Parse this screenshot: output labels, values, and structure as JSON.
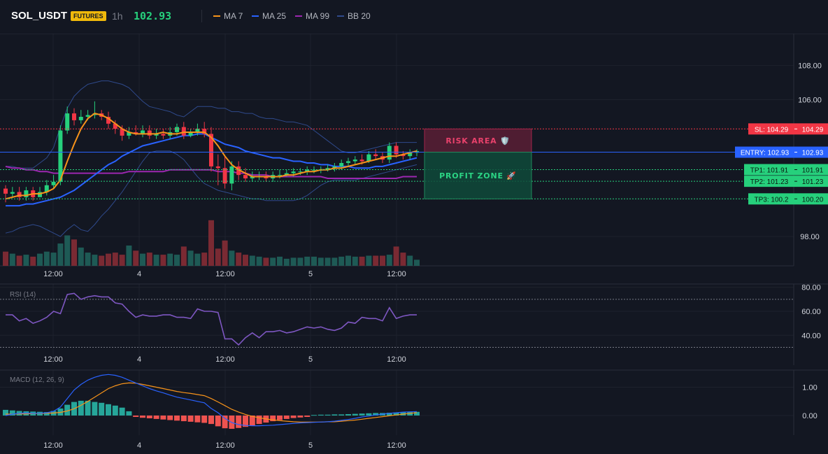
{
  "header": {
    "symbol": "SOL_USDT",
    "badge": "FUTURES",
    "interval": "1h",
    "price": "102.93",
    "indicators": [
      {
        "label": "MA 7",
        "color": "#f7931a",
        "icon": "line-swatch"
      },
      {
        "label": "MA 25",
        "color": "#2962ff",
        "icon": "line-swatch"
      },
      {
        "label": "MA 99",
        "color": "#9c27b0",
        "icon": "line-swatch"
      },
      {
        "label": "BB 20",
        "color": "#2f4a8c",
        "icon": "line-swatch"
      }
    ]
  },
  "colors": {
    "up": "#26d07c",
    "down": "#f23645",
    "vol_up": "#1e5a55",
    "vol_down": "#7a2a33",
    "ma7": "#f7931a",
    "ma25": "#2962ff",
    "ma99": "#9c27b0",
    "bb": "#2f4a8c",
    "rsi": "#7e57c2",
    "macd": "#2962ff",
    "signal": "#f7931a",
    "hist_up": "#26a69a",
    "hist_down": "#ef5350",
    "sl": "#f23645",
    "entry": "#2962ff",
    "tp": "#26d07c"
  },
  "time_axis": [
    "12:00",
    "4",
    "12:00",
    "5",
    "12:00"
  ],
  "levels": {
    "sl": {
      "label": "SL: 104.29",
      "value": "104.29",
      "price": 104.29
    },
    "entry": {
      "label": "ENTRY: 102.93",
      "value": "102.93",
      "price": 102.93
    },
    "tps": [
      {
        "label": "TP1: 101.91",
        "value": "101.91",
        "price": 101.91
      },
      {
        "label": "TP2: 101.23",
        "value": "101.23",
        "price": 101.23
      },
      {
        "label": "TP3: 100.2",
        "value": "100.20",
        "price": 100.2
      }
    ]
  },
  "zones": {
    "risk": {
      "label": "RISK AREA 🛡️",
      "icon": "shield-icon"
    },
    "profit": {
      "label": "PROFIT ZONE 🚀",
      "icon": "rocket-icon"
    }
  },
  "chart_data": [
    {
      "type": "candlestick",
      "title": "SOL_USDT 1h",
      "price_axis_ticks": [
        "108.00",
        "106.00",
        "98.00"
      ],
      "price_axis_values": [
        108,
        106,
        98
      ],
      "x": [
        1,
        2,
        3,
        4,
        5,
        6,
        7,
        8,
        9,
        10,
        11,
        12,
        13,
        14,
        15,
        16,
        17,
        18,
        19,
        20,
        21,
        22,
        23,
        24,
        25,
        26,
        27,
        28,
        29,
        30,
        31,
        32,
        33,
        34,
        35,
        36,
        37,
        38,
        39,
        40,
        41,
        42,
        43,
        44,
        45,
        46,
        47,
        48,
        49,
        50,
        51,
        52,
        53,
        54,
        55,
        56,
        57,
        58,
        59,
        60,
        61
      ],
      "open": [
        100.8,
        100.5,
        100.6,
        100.3,
        100.7,
        100.3,
        100.6,
        101.0,
        101.2,
        104.2,
        105.2,
        104.8,
        105.0,
        105.1,
        105.2,
        105.0,
        104.6,
        104.3,
        103.9,
        104.1,
        104.0,
        104.2,
        103.9,
        104.0,
        103.9,
        104.1,
        104.4,
        103.9,
        104.1,
        104.3,
        104.0,
        102.1,
        102.0,
        101.1,
        102.1,
        101.6,
        101.4,
        101.5,
        101.5,
        101.4,
        101.6,
        101.6,
        101.7,
        101.8,
        101.8,
        101.9,
        101.9,
        101.9,
        102.0,
        102.1,
        102.3,
        102.4,
        102.5,
        102.4,
        102.8,
        102.7,
        102.5,
        103.3,
        102.8,
        102.7,
        102.9
      ],
      "close": [
        100.5,
        100.6,
        100.3,
        100.7,
        100.3,
        100.6,
        101.0,
        101.2,
        104.2,
        105.2,
        104.8,
        105.0,
        105.1,
        105.2,
        105.0,
        104.6,
        104.3,
        103.9,
        104.1,
        104.0,
        104.2,
        103.9,
        104.0,
        103.9,
        104.1,
        104.4,
        103.9,
        104.1,
        104.3,
        104.0,
        102.1,
        102.0,
        101.1,
        102.1,
        101.6,
        101.4,
        101.5,
        101.5,
        101.4,
        101.6,
        101.6,
        101.7,
        101.8,
        101.8,
        101.9,
        101.9,
        101.9,
        102.0,
        102.1,
        102.3,
        102.4,
        102.5,
        102.4,
        102.8,
        102.7,
        102.5,
        103.3,
        102.8,
        102.7,
        102.9,
        103.0
      ],
      "high": [
        101.0,
        100.9,
        100.9,
        100.9,
        100.9,
        100.9,
        101.3,
        101.6,
        104.5,
        105.6,
        105.5,
        105.4,
        105.4,
        105.9,
        105.4,
        105.3,
        104.8,
        104.5,
        104.4,
        104.5,
        104.5,
        104.5,
        104.3,
        104.3,
        104.4,
        104.6,
        104.7,
        104.3,
        104.6,
        104.7,
        104.4,
        102.8,
        102.7,
        102.4,
        102.4,
        102.0,
        101.8,
        101.8,
        101.8,
        101.8,
        101.9,
        101.9,
        102.0,
        102.0,
        102.1,
        102.1,
        102.1,
        102.2,
        102.3,
        102.5,
        102.6,
        102.7,
        102.8,
        103.0,
        103.1,
        102.9,
        103.5,
        103.5,
        103.0,
        103.1,
        103.1
      ],
      "low": [
        100.0,
        100.3,
        100.1,
        100.1,
        100.1,
        100.3,
        100.4,
        100.8,
        101.0,
        104.0,
        104.5,
        104.6,
        104.8,
        104.9,
        104.8,
        104.3,
        104.0,
        103.6,
        103.7,
        103.9,
        103.8,
        103.7,
        103.7,
        103.7,
        103.7,
        103.9,
        103.7,
        103.8,
        103.9,
        103.8,
        101.8,
        101.0,
        100.8,
        100.7,
        101.3,
        101.2,
        101.2,
        101.3,
        101.2,
        101.2,
        101.4,
        101.5,
        101.5,
        101.6,
        101.6,
        101.7,
        101.7,
        101.8,
        101.8,
        101.9,
        102.1,
        102.2,
        102.2,
        102.3,
        102.5,
        102.3,
        102.3,
        102.6,
        102.5,
        102.5,
        102.7
      ],
      "volume": [
        14,
        12,
        10,
        11,
        9,
        12,
        14,
        13,
        22,
        30,
        26,
        18,
        13,
        11,
        10,
        12,
        13,
        11,
        20,
        15,
        12,
        13,
        11,
        11,
        12,
        11,
        19,
        15,
        12,
        13,
        45,
        17,
        25,
        15,
        13,
        11,
        10,
        9,
        8,
        8,
        9,
        7,
        8,
        8,
        9,
        9,
        8,
        8,
        8,
        9,
        10,
        9,
        9,
        10,
        10,
        10,
        11,
        19,
        13,
        10,
        6
      ],
      "ma7": [
        100.2,
        100.3,
        100.4,
        100.4,
        100.5,
        100.5,
        100.6,
        100.8,
        101.3,
        102.4,
        103.4,
        104.3,
        104.9,
        105.2,
        105.1,
        104.9,
        104.6,
        104.3,
        104.1,
        104.0,
        104.0,
        104.0,
        104.0,
        104.1,
        104.0,
        104.0,
        104.1,
        104.1,
        104.1,
        104.1,
        103.8,
        103.3,
        102.7,
        102.2,
        101.9,
        101.7,
        101.5,
        101.5,
        101.5,
        101.5,
        101.5,
        101.6,
        101.6,
        101.7,
        101.8,
        101.8,
        101.9,
        101.9,
        102.0,
        102.0,
        102.1,
        102.2,
        102.3,
        102.4,
        102.5,
        102.6,
        102.7,
        102.7,
        102.8,
        102.9,
        103.0
      ],
      "ma25": [
        99.8,
        99.8,
        99.8,
        99.9,
        99.9,
        100.0,
        100.1,
        100.2,
        100.3,
        100.5,
        100.7,
        101.0,
        101.3,
        101.6,
        101.9,
        102.2,
        102.4,
        102.7,
        102.9,
        103.1,
        103.3,
        103.4,
        103.5,
        103.6,
        103.7,
        103.8,
        103.9,
        103.9,
        104.0,
        104.0,
        103.8,
        103.6,
        103.4,
        103.3,
        103.2,
        103.0,
        102.9,
        102.8,
        102.7,
        102.6,
        102.6,
        102.5,
        102.4,
        102.4,
        102.3,
        102.3,
        102.2,
        102.2,
        102.1,
        102.1,
        102.1,
        102.0,
        102.0,
        102.0,
        102.1,
        102.1,
        102.2,
        102.3,
        102.4,
        102.5,
        102.6
      ],
      "ma99": [
        102.1,
        102.0,
        102.0,
        101.9,
        101.9,
        101.8,
        101.8,
        101.7,
        101.7,
        101.7,
        101.7,
        101.7,
        101.7,
        101.7,
        101.7,
        101.7,
        101.7,
        101.7,
        101.8,
        101.8,
        101.8,
        101.8,
        101.8,
        101.8,
        101.9,
        101.9,
        101.9,
        101.9,
        101.9,
        101.9,
        101.9,
        101.8,
        101.8,
        101.8,
        101.7,
        101.7,
        101.6,
        101.6,
        101.6,
        101.5,
        101.5,
        101.5,
        101.5,
        101.5,
        101.5,
        101.5,
        101.5,
        101.4,
        101.4,
        101.4,
        101.4,
        101.4,
        101.4,
        101.4,
        101.4,
        101.4,
        101.4,
        101.4,
        101.5,
        101.5,
        101.5
      ],
      "bb_upper": [
        102.1,
        102.1,
        102.0,
        102.0,
        102.0,
        102.3,
        102.6,
        103.2,
        104.4,
        105.5,
        106.2,
        106.6,
        106.9,
        107.0,
        107.1,
        107.1,
        107.0,
        106.9,
        106.7,
        106.3,
        105.9,
        105.6,
        105.5,
        105.4,
        105.3,
        105.1,
        105.0,
        105.3,
        105.6,
        105.6,
        105.6,
        105.5,
        105.5,
        105.3,
        105.3,
        105.2,
        105.2,
        105.0,
        104.9,
        104.9,
        104.8,
        104.7,
        104.7,
        104.6,
        104.5,
        104.2,
        103.9,
        103.6,
        103.3,
        103.0,
        102.9,
        102.9,
        103.0,
        103.1,
        103.2,
        103.3,
        103.4,
        103.5,
        103.5,
        103.5,
        103.5
      ],
      "bb_lower": [
        98.2,
        98.3,
        98.5,
        98.6,
        98.7,
        98.6,
        98.4,
        98.2,
        98.0,
        98.4,
        98.7,
        98.4,
        98.3,
        98.7,
        99.2,
        99.6,
        100.1,
        100.6,
        101.2,
        101.8,
        102.4,
        102.9,
        103.0,
        103.0,
        103.0,
        102.8,
        102.5,
        102.0,
        101.5,
        101.1,
        100.9,
        100.7,
        100.6,
        100.5,
        100.4,
        100.3,
        100.2,
        100.2,
        100.1,
        100.1,
        100.1,
        100.1,
        100.1,
        100.2,
        100.4,
        100.7,
        101.0,
        101.2,
        101.3,
        101.3,
        101.3,
        101.3,
        101.4,
        101.5,
        101.6,
        101.7,
        101.8,
        101.9,
        102.0,
        102.1,
        102.2
      ]
    },
    {
      "type": "line",
      "title": "RSI (14)",
      "y_ticks": [
        "80.00",
        "60.00",
        "40.00"
      ],
      "y_tick_values": [
        80,
        60,
        40
      ],
      "bands": [
        70,
        30
      ],
      "values": [
        57,
        57,
        52,
        54,
        50,
        52,
        55,
        60,
        58,
        74,
        75,
        70,
        72,
        73,
        72,
        72,
        67,
        66,
        60,
        55,
        57,
        56,
        56,
        57,
        57,
        55,
        55,
        54,
        62,
        60,
        60,
        59,
        37,
        37,
        32,
        38,
        42,
        38,
        43,
        43,
        44,
        42,
        43,
        45,
        47,
        46,
        47,
        45,
        44,
        46,
        51,
        50,
        55,
        54,
        54,
        52,
        63,
        54,
        56,
        57,
        57
      ]
    },
    {
      "type": "line",
      "title": "MACD (12, 26, 9)",
      "y_ticks": [
        "1.00",
        "0.00"
      ],
      "y_tick_values": [
        1.0,
        0.0
      ],
      "macd": [
        0.0,
        0.05,
        0.08,
        0.09,
        0.08,
        0.08,
        0.1,
        0.15,
        0.3,
        0.6,
        0.9,
        1.1,
        1.25,
        1.35,
        1.42,
        1.45,
        1.42,
        1.35,
        1.25,
        1.15,
        1.05,
        0.95,
        0.87,
        0.8,
        0.72,
        0.65,
        0.6,
        0.55,
        0.5,
        0.45,
        0.25,
        0.1,
        -0.1,
        -0.25,
        -0.32,
        -0.35,
        -0.36,
        -0.36,
        -0.35,
        -0.34,
        -0.32,
        -0.3,
        -0.28,
        -0.26,
        -0.25,
        -0.24,
        -0.23,
        -0.22,
        -0.2,
        -0.17,
        -0.14,
        -0.1,
        -0.05,
        -0.02,
        0.02,
        0.05,
        0.08,
        0.1,
        0.12,
        0.13,
        0.14
      ],
      "signal": [
        0.05,
        0.05,
        0.06,
        0.06,
        0.07,
        0.07,
        0.08,
        0.09,
        0.11,
        0.16,
        0.24,
        0.36,
        0.5,
        0.65,
        0.8,
        0.95,
        1.05,
        1.12,
        1.15,
        1.14,
        1.1,
        1.05,
        1.0,
        0.95,
        0.9,
        0.85,
        0.81,
        0.78,
        0.74,
        0.7,
        0.6,
        0.48,
        0.35,
        0.22,
        0.12,
        0.04,
        -0.03,
        -0.08,
        -0.12,
        -0.15,
        -0.18,
        -0.2,
        -0.22,
        -0.23,
        -0.23,
        -0.23,
        -0.23,
        -0.22,
        -0.22,
        -0.2,
        -0.18,
        -0.16,
        -0.13,
        -0.1,
        -0.07,
        -0.04,
        -0.01,
        0.02,
        0.05,
        0.08,
        0.1
      ],
      "histogram": [
        0.2,
        0.18,
        0.16,
        0.15,
        0.14,
        0.13,
        0.12,
        0.16,
        0.25,
        0.38,
        0.48,
        0.52,
        0.52,
        0.48,
        0.45,
        0.4,
        0.35,
        0.28,
        0.15,
        -0.05,
        -0.08,
        -0.1,
        -0.12,
        -0.14,
        -0.16,
        -0.18,
        -0.2,
        -0.22,
        -0.24,
        -0.26,
        -0.3,
        -0.38,
        -0.45,
        -0.47,
        -0.44,
        -0.4,
        -0.35,
        -0.3,
        -0.25,
        -0.2,
        -0.16,
        -0.12,
        -0.09,
        -0.07,
        -0.05,
        0.02,
        0.03,
        0.03,
        0.04,
        0.04,
        0.05,
        0.06,
        0.07,
        0.08,
        0.09,
        0.09,
        0.1,
        0.11,
        0.12,
        0.12,
        0.13
      ]
    }
  ]
}
